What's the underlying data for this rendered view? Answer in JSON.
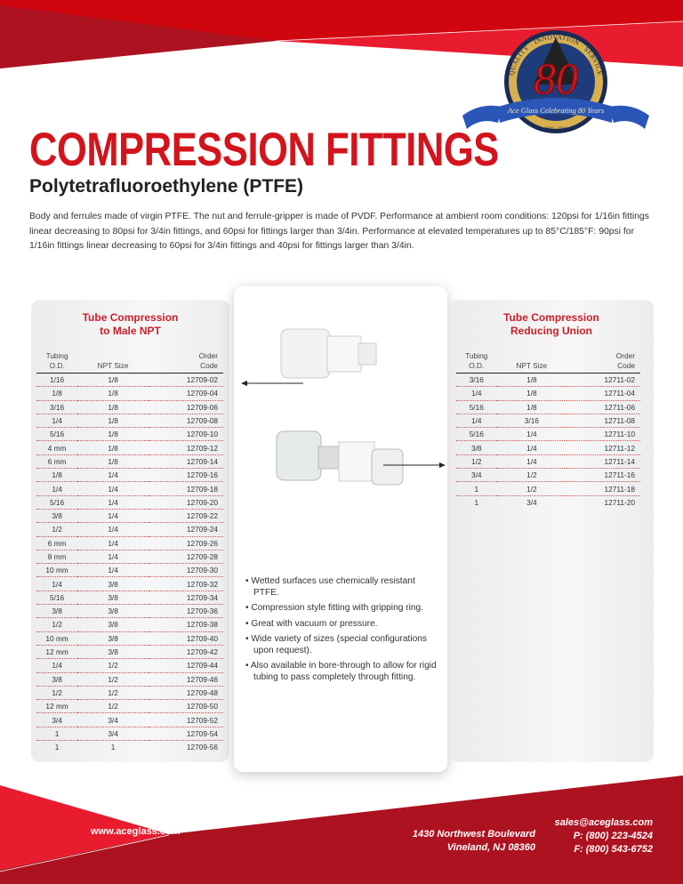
{
  "header": {
    "title": "COMPRESSION FITTINGS",
    "subtitle": "Polytetrafluoroethylene (PTFE)",
    "description": "Body and ferrules made of virgin PTFE. The nut and ferrule-gripper is made of PVDF. Performance at ambient room conditions: 120psi for 1/16in fittings linear decreasing to 80psi for 3/4in fittings, and 60psi for fittings larger than 3/4in. Performance at elevated temperatures up to 85°C/185°F: 90psi for 1/16in fittings linear decreasing to 60psi for 3/4in fittings and 40psi for fittings larger than 3/4in.",
    "badge": {
      "top_text": "QUALITY · INNOVATION · SERVICE",
      "number": "80",
      "ribbon": "Ace Glass Celebrating 80 Years",
      "years": "1936 - 2016"
    }
  },
  "colors": {
    "brand_red": "#d3141c",
    "dark_red": "#ad1220",
    "light_red": "#e81c2e"
  },
  "male_npt": {
    "title_line1": "Tube Compression",
    "title_line2": "to Male NPT",
    "columns": [
      "Tubing O.D.",
      "NPT Size",
      "Order Code"
    ],
    "rows": [
      [
        "1/16",
        "1/8",
        "12709-02"
      ],
      [
        "1/8",
        "1/8",
        "12709-04"
      ],
      [
        "3/16",
        "1/8",
        "12709-06"
      ],
      [
        "1/4",
        "1/8",
        "12709-08"
      ],
      [
        "5/16",
        "1/8",
        "12709-10"
      ],
      [
        "4 mm",
        "1/8",
        "12709-12"
      ],
      [
        "6 mm",
        "1/8",
        "12709-14"
      ],
      [
        "1/8",
        "1/4",
        "12709-16"
      ],
      [
        "1/4",
        "1/4",
        "12709-18"
      ],
      [
        "5/16",
        "1/4",
        "12709-20"
      ],
      [
        "3/8",
        "1/4",
        "12709-22"
      ],
      [
        "1/2",
        "1/4",
        "12709-24"
      ],
      [
        "6 mm",
        "1/4",
        "12709-26"
      ],
      [
        "8 mm",
        "1/4",
        "12709-28"
      ],
      [
        "10 mm",
        "1/4",
        "12709-30"
      ],
      [
        "1/4",
        "3/8",
        "12709-32"
      ],
      [
        "5/16",
        "3/8",
        "12709-34"
      ],
      [
        "3/8",
        "3/8",
        "12709-36"
      ],
      [
        "1/2",
        "3/8",
        "12709-38"
      ],
      [
        "10 mm",
        "3/8",
        "12709-40"
      ],
      [
        "12 mm",
        "3/8",
        "12709-42"
      ],
      [
        "1/4",
        "1/2",
        "12709-44"
      ],
      [
        "3/8",
        "1/2",
        "12709-46"
      ],
      [
        "1/2",
        "1/2",
        "12709-48"
      ],
      [
        "12 mm",
        "1/2",
        "12709-50"
      ],
      [
        "3/4",
        "3/4",
        "12709-52"
      ],
      [
        "1",
        "3/4",
        "12709-54"
      ],
      [
        "1",
        "1",
        "12709-56"
      ]
    ]
  },
  "reducing_union": {
    "title_line1": "Tube Compression",
    "title_line2": "Reducing Union",
    "columns": [
      "Tubing O.D.",
      "NPT Size",
      "Order Code"
    ],
    "rows": [
      [
        "3/16",
        "1/8",
        "12711-02"
      ],
      [
        "1/4",
        "1/8",
        "12711-04"
      ],
      [
        "5/16",
        "1/8",
        "12711-06"
      ],
      [
        "1/4",
        "3/16",
        "12711-08"
      ],
      [
        "5/16",
        "1/4",
        "12711-10"
      ],
      [
        "3/8",
        "1/4",
        "12711-12"
      ],
      [
        "1/2",
        "1/4",
        "12711-14"
      ],
      [
        "3/4",
        "1/2",
        "12711-16"
      ],
      [
        "1",
        "1/2",
        "12711-18"
      ],
      [
        "1",
        "3/4",
        "12711-20"
      ]
    ]
  },
  "features": [
    "Wetted surfaces use chemically resistant PTFE.",
    "Compression style fitting with gripping ring.",
    "Great with vacuum or pressure.",
    "Wide variety of sizes (special configurations upon request).",
    "Also available in bore-through to allow for rigid tubing to pass completely through fitting."
  ],
  "footer": {
    "website": "www.aceglass.com",
    "address_line1": "1430 Northwest Boulevard",
    "address_line2": "Vineland, NJ 08360",
    "email": "sales@aceglass.com",
    "phone": "P: (800) 223-4524",
    "fax": "F: (800) 543-6752"
  }
}
